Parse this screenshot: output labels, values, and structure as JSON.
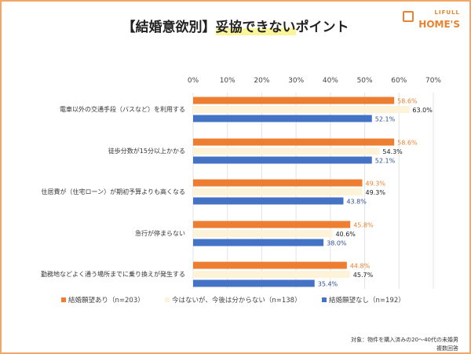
{
  "title_part1": "【結婚意欲別】",
  "title_part2": "妥協できない",
  "title_part3": "ポイント",
  "logo": {
    "small": "LIFULL",
    "big": "HOME'S"
  },
  "footnote": [
    "対象：物件を購入済みの20～40代の未婚男",
    "複数回答"
  ],
  "chart_data": {
    "type": "bar",
    "orientation": "horizontal",
    "categories": [
      "電車以外の交通手段（バスなど）を利用する",
      "徒歩分数が15分以上かかる",
      "住居費が（住宅ローン）が期初予算よりも高くなる",
      "急行が停まらない",
      "勤務地などよく通う場所までに乗り換えが発生する"
    ],
    "series": [
      {
        "name": "結婚願望あり（n=203）",
        "color": "#ed7d31",
        "label_color": "#e8832f",
        "values": [
          58.6,
          58.6,
          49.3,
          45.8,
          44.8
        ]
      },
      {
        "name": "今はないが、今後は分からない（n=138）",
        "color": "#fdf3d8",
        "label_color": "#222222",
        "values": [
          63.0,
          54.3,
          49.3,
          40.6,
          45.7
        ]
      },
      {
        "name": "結婚願望なし（n=192）",
        "color": "#4472c4",
        "label_color": "#2f4f8f",
        "values": [
          52.1,
          52.1,
          43.8,
          38.0,
          35.4
        ]
      }
    ],
    "xlim": [
      0,
      70
    ],
    "xticks": [
      "0%",
      "10%",
      "20%",
      "30%",
      "40%",
      "50%",
      "60%",
      "70%"
    ],
    "grid": true,
    "legend": "bottom"
  }
}
